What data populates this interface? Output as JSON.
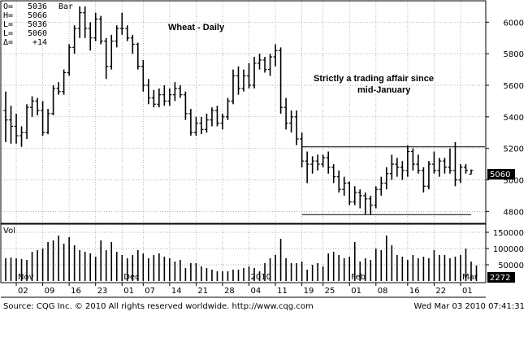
{
  "header": {
    "ohlc": [
      {
        "key": "O=",
        "value": "5036",
        "extra": "Bar"
      },
      {
        "key": "H=",
        "value": "5066",
        "extra": ""
      },
      {
        "key": "L=",
        "value": "5036",
        "extra": ""
      },
      {
        "key": "L=",
        "value": "5060",
        "extra": ""
      },
      {
        "key": "Δ=",
        "value": "+14",
        "extra": ""
      }
    ]
  },
  "annotations": {
    "title": "Wheat - Daily",
    "note_line1": "Strictly a trading affair since",
    "note_line2": "mid-January"
  },
  "volume_label": "Vol",
  "last_price_badge": "5060",
  "last_volume_badge": "2272",
  "footer": {
    "source": "Source: CQG Inc. © 2010 All rights reserved worldwide. http://www.cqg.com",
    "timestamp": "Wed Mar 03 2010 07:41:31"
  },
  "colors": {
    "background": "#ffffff",
    "bars": "#000000",
    "badge_bg": "#000000",
    "badge_text": "#ffffff"
  },
  "chart_data": [
    {
      "type": "ohlc",
      "title": "Wheat - Daily",
      "ylim": [
        4740,
        6120
      ],
      "y_ticks": [
        4800,
        5000,
        5200,
        5400,
        5600,
        5800,
        6000
      ],
      "x_tick_labels": [
        "02",
        "09",
        "16",
        "23",
        "01",
        "07",
        "14",
        "21",
        "28",
        "04",
        "11",
        "19",
        "25",
        "01",
        "08",
        "16",
        "22",
        "01"
      ],
      "x_tick_index": [
        2,
        7,
        12,
        17,
        22,
        26,
        31,
        36,
        41,
        46,
        51,
        56,
        60,
        65,
        70,
        76,
        81,
        86
      ],
      "period_labels": [
        {
          "label": "Nov",
          "index": 2
        },
        {
          "label": "Dec",
          "index": 22
        },
        {
          "label": "2010",
          "index": 46
        },
        {
          "label": "Feb",
          "index": 65
        },
        {
          "label": "Mar",
          "index": 86
        }
      ],
      "support_level": 4780,
      "resistance_level": 5210,
      "bars": [
        {
          "o": 5440,
          "h": 5560,
          "l": 5240,
          "c": 5380
        },
        {
          "o": 5380,
          "h": 5470,
          "l": 5230,
          "c": 5340
        },
        {
          "o": 5340,
          "h": 5420,
          "l": 5230,
          "c": 5280
        },
        {
          "o": 5280,
          "h": 5340,
          "l": 5210,
          "c": 5300
        },
        {
          "o": 5300,
          "h": 5480,
          "l": 5260,
          "c": 5460
        },
        {
          "o": 5460,
          "h": 5530,
          "l": 5400,
          "c": 5500
        },
        {
          "o": 5500,
          "h": 5520,
          "l": 5410,
          "c": 5440
        },
        {
          "o": 5440,
          "h": 5500,
          "l": 5280,
          "c": 5300
        },
        {
          "o": 5300,
          "h": 5450,
          "l": 5290,
          "c": 5420
        },
        {
          "o": 5420,
          "h": 5600,
          "l": 5410,
          "c": 5580
        },
        {
          "o": 5580,
          "h": 5620,
          "l": 5540,
          "c": 5560
        },
        {
          "o": 5560,
          "h": 5700,
          "l": 5540,
          "c": 5680
        },
        {
          "o": 5680,
          "h": 5860,
          "l": 5660,
          "c": 5840
        },
        {
          "o": 5840,
          "h": 5980,
          "l": 5800,
          "c": 5960
        },
        {
          "o": 5960,
          "h": 6100,
          "l": 5900,
          "c": 6060
        },
        {
          "o": 6060,
          "h": 6100,
          "l": 5900,
          "c": 5960
        },
        {
          "o": 5960,
          "h": 6000,
          "l": 5820,
          "c": 5900
        },
        {
          "o": 5900,
          "h": 6060,
          "l": 5880,
          "c": 6020
        },
        {
          "o": 6020,
          "h": 6040,
          "l": 5860,
          "c": 5880
        },
        {
          "o": 5880,
          "h": 5900,
          "l": 5640,
          "c": 5720
        },
        {
          "o": 5720,
          "h": 5920,
          "l": 5700,
          "c": 5880
        },
        {
          "o": 5880,
          "h": 5980,
          "l": 5840,
          "c": 5960
        },
        {
          "o": 5960,
          "h": 6060,
          "l": 5920,
          "c": 5960
        },
        {
          "o": 5960,
          "h": 5980,
          "l": 5880,
          "c": 5900
        },
        {
          "o": 5900,
          "h": 5920,
          "l": 5800,
          "c": 5860
        },
        {
          "o": 5860,
          "h": 5870,
          "l": 5700,
          "c": 5720
        },
        {
          "o": 5720,
          "h": 5760,
          "l": 5560,
          "c": 5600
        },
        {
          "o": 5600,
          "h": 5640,
          "l": 5480,
          "c": 5520
        },
        {
          "o": 5520,
          "h": 5570,
          "l": 5460,
          "c": 5480
        },
        {
          "o": 5480,
          "h": 5580,
          "l": 5460,
          "c": 5540
        },
        {
          "o": 5540,
          "h": 5600,
          "l": 5470,
          "c": 5500
        },
        {
          "o": 5500,
          "h": 5580,
          "l": 5470,
          "c": 5540
        },
        {
          "o": 5540,
          "h": 5620,
          "l": 5500,
          "c": 5580
        },
        {
          "o": 5580,
          "h": 5600,
          "l": 5520,
          "c": 5540
        },
        {
          "o": 5540,
          "h": 5560,
          "l": 5380,
          "c": 5420
        },
        {
          "o": 5420,
          "h": 5450,
          "l": 5280,
          "c": 5300
        },
        {
          "o": 5300,
          "h": 5400,
          "l": 5280,
          "c": 5360
        },
        {
          "o": 5360,
          "h": 5400,
          "l": 5290,
          "c": 5320
        },
        {
          "o": 5320,
          "h": 5420,
          "l": 5300,
          "c": 5380
        },
        {
          "o": 5380,
          "h": 5460,
          "l": 5340,
          "c": 5440
        },
        {
          "o": 5440,
          "h": 5470,
          "l": 5340,
          "c": 5360
        },
        {
          "o": 5360,
          "h": 5420,
          "l": 5320,
          "c": 5400
        },
        {
          "o": 5400,
          "h": 5520,
          "l": 5380,
          "c": 5500
        },
        {
          "o": 5500,
          "h": 5700,
          "l": 5480,
          "c": 5660
        },
        {
          "o": 5660,
          "h": 5720,
          "l": 5540,
          "c": 5580
        },
        {
          "o": 5580,
          "h": 5700,
          "l": 5560,
          "c": 5660
        },
        {
          "o": 5660,
          "h": 5740,
          "l": 5580,
          "c": 5600
        },
        {
          "o": 5600,
          "h": 5780,
          "l": 5580,
          "c": 5740
        },
        {
          "o": 5740,
          "h": 5800,
          "l": 5700,
          "c": 5760
        },
        {
          "o": 5760,
          "h": 5780,
          "l": 5680,
          "c": 5700
        },
        {
          "o": 5700,
          "h": 5800,
          "l": 5660,
          "c": 5780
        },
        {
          "o": 5780,
          "h": 5860,
          "l": 5720,
          "c": 5820
        },
        {
          "o": 5820,
          "h": 5840,
          "l": 5420,
          "c": 5460
        },
        {
          "o": 5460,
          "h": 5520,
          "l": 5320,
          "c": 5360
        },
        {
          "o": 5360,
          "h": 5440,
          "l": 5300,
          "c": 5400
        },
        {
          "o": 5400,
          "h": 5440,
          "l": 5220,
          "c": 5260
        },
        {
          "o": 5260,
          "h": 5300,
          "l": 5080,
          "c": 5120
        },
        {
          "o": 5120,
          "h": 5180,
          "l": 4980,
          "c": 5100
        },
        {
          "o": 5100,
          "h": 5150,
          "l": 5040,
          "c": 5120
        },
        {
          "o": 5120,
          "h": 5160,
          "l": 5060,
          "c": 5100
        },
        {
          "o": 5100,
          "h": 5160,
          "l": 5080,
          "c": 5140
        },
        {
          "o": 5140,
          "h": 5180,
          "l": 5040,
          "c": 5080
        },
        {
          "o": 5080,
          "h": 5100,
          "l": 4980,
          "c": 5020
        },
        {
          "o": 5020,
          "h": 5060,
          "l": 4920,
          "c": 4940
        },
        {
          "o": 4940,
          "h": 5020,
          "l": 4900,
          "c": 4980
        },
        {
          "o": 4980,
          "h": 4990,
          "l": 4840,
          "c": 4860
        },
        {
          "o": 4860,
          "h": 4960,
          "l": 4840,
          "c": 4920
        },
        {
          "o": 4920,
          "h": 4940,
          "l": 4820,
          "c": 4900
        },
        {
          "o": 4900,
          "h": 4920,
          "l": 4780,
          "c": 4880
        },
        {
          "o": 4880,
          "h": 4900,
          "l": 4780,
          "c": 4840
        },
        {
          "o": 4840,
          "h": 4960,
          "l": 4820,
          "c": 4940
        },
        {
          "o": 4940,
          "h": 5020,
          "l": 4900,
          "c": 4980
        },
        {
          "o": 4980,
          "h": 5080,
          "l": 4940,
          "c": 5040
        },
        {
          "o": 5040,
          "h": 5160,
          "l": 5000,
          "c": 5100
        },
        {
          "o": 5100,
          "h": 5140,
          "l": 5020,
          "c": 5080
        },
        {
          "o": 5080,
          "h": 5120,
          "l": 5000,
          "c": 5060
        },
        {
          "o": 5060,
          "h": 5220,
          "l": 5020,
          "c": 5180
        },
        {
          "o": 5180,
          "h": 5200,
          "l": 5060,
          "c": 5100
        },
        {
          "o": 5100,
          "h": 5160,
          "l": 5040,
          "c": 5060
        },
        {
          "o": 5060,
          "h": 5080,
          "l": 4920,
          "c": 4960
        },
        {
          "o": 4960,
          "h": 5120,
          "l": 4940,
          "c": 5100
        },
        {
          "o": 5100,
          "h": 5180,
          "l": 5040,
          "c": 5060
        },
        {
          "o": 5060,
          "h": 5140,
          "l": 5020,
          "c": 5120
        },
        {
          "o": 5120,
          "h": 5140,
          "l": 5040,
          "c": 5080
        },
        {
          "o": 5080,
          "h": 5200,
          "l": 5040,
          "c": 5060
        },
        {
          "o": 5060,
          "h": 5240,
          "l": 4960,
          "c": 5000
        },
        {
          "o": 5000,
          "h": 5100,
          "l": 4980,
          "c": 5080
        },
        {
          "o": 5080,
          "h": 5100,
          "l": 5040,
          "c": 5060
        },
        {
          "o": 5036,
          "h": 5066,
          "l": 5036,
          "c": 5060
        }
      ],
      "volume": {
        "label": "Vol",
        "ylim": [
          0,
          160000
        ],
        "y_ticks": [
          50000,
          100000,
          150000
        ],
        "values": [
          70000,
          72000,
          70000,
          68000,
          65000,
          90000,
          95000,
          100000,
          120000,
          125000,
          140000,
          115000,
          135000,
          110000,
          95000,
          90000,
          85000,
          75000,
          125000,
          95000,
          120000,
          90000,
          80000,
          70000,
          80000,
          95000,
          85000,
          70000,
          80000,
          85000,
          75000,
          70000,
          60000,
          65000,
          40000,
          55000,
          55000,
          45000,
          40000,
          35000,
          30000,
          30000,
          30000,
          35000,
          35000,
          40000,
          45000,
          40000,
          30000,
          55000,
          70000,
          80000,
          130000,
          70000,
          55000,
          55000,
          60000,
          35000,
          50000,
          55000,
          45000,
          85000,
          90000,
          80000,
          70000,
          75000,
          120000,
          60000,
          70000,
          65000,
          100000,
          95000,
          140000,
          110000,
          80000,
          75000,
          65000,
          80000,
          70000,
          75000,
          70000,
          95000,
          80000,
          80000,
          70000,
          75000,
          80000,
          100000,
          60000,
          48000
        ]
      }
    }
  ]
}
